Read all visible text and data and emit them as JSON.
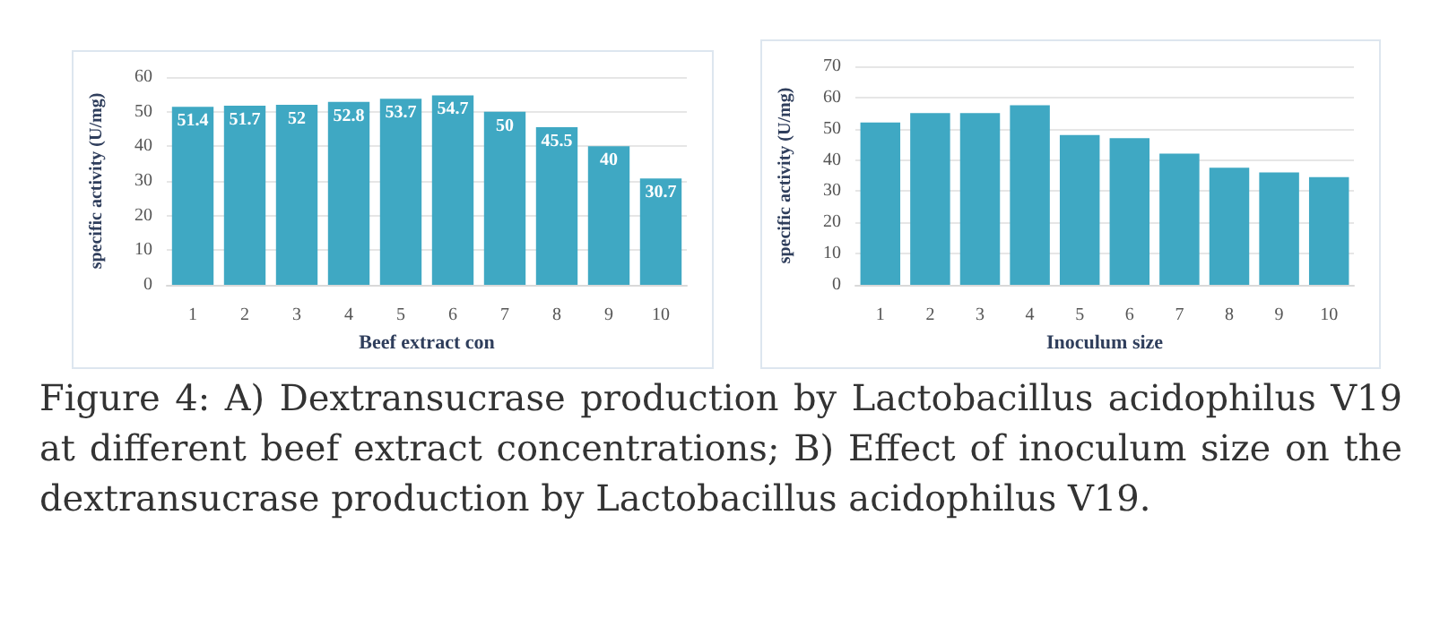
{
  "chart_data": [
    {
      "type": "bar",
      "xlabel": "Beef extract con",
      "ylabel": "specific activity (U/mg)",
      "categories": [
        "1",
        "2",
        "3",
        "4",
        "5",
        "6",
        "7",
        "8",
        "9",
        "10"
      ],
      "values": [
        51.4,
        51.7,
        52,
        52.8,
        53.7,
        54.7,
        50,
        45.5,
        40,
        30.7
      ],
      "color": "#3fa8c3",
      "ylim": [
        0,
        60
      ],
      "yticks": [
        0,
        10,
        20,
        30,
        40,
        50,
        60
      ],
      "grid": "y",
      "data_labels": true,
      "annotations": [
        "Figure 4: A) Dextransucrase production by Lactobacillus acidophilus V19 at different beef extract concentrations; B) Effect of inoculum size on the dextransucrase production by Lactobacillus acidophilus V19."
      ]
    },
    {
      "type": "bar",
      "xlabel": "Inoculum size",
      "ylabel": "specific activity (U/mg)",
      "categories": [
        "1",
        "2",
        "3",
        "4",
        "5",
        "6",
        "7",
        "8",
        "9",
        "10"
      ],
      "values": [
        52,
        55,
        55,
        57.5,
        48,
        47,
        42,
        37.5,
        36,
        34.5
      ],
      "color": "#3fa8c3",
      "ylim": [
        0,
        70
      ],
      "yticks": [
        0,
        10,
        20,
        30,
        40,
        50,
        60,
        70
      ],
      "grid": "y"
    }
  ]
}
